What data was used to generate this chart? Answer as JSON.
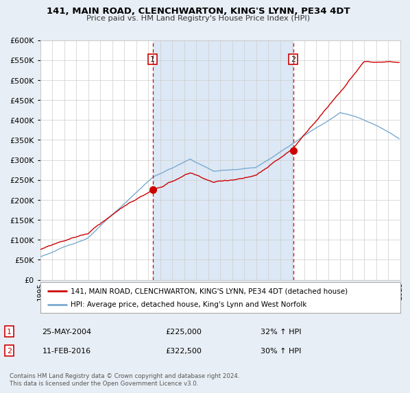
{
  "title": "141, MAIN ROAD, CLENCHWARTON, KING'S LYNN, PE34 4DT",
  "subtitle": "Price paid vs. HM Land Registry's House Price Index (HPI)",
  "red_label": "141, MAIN ROAD, CLENCHWARTON, KING'S LYNN, PE34 4DT (detached house)",
  "blue_label": "HPI: Average price, detached house, King's Lynn and West Norfolk",
  "sale1_date": "25-MAY-2004",
  "sale1_price": 225000,
  "sale1_hpi": "32% ↑ HPI",
  "sale2_date": "11-FEB-2016",
  "sale2_price": 322500,
  "sale2_hpi": "30% ↑ HPI",
  "ylim": [
    0,
    600000
  ],
  "yticks": [
    0,
    50000,
    100000,
    150000,
    200000,
    250000,
    300000,
    350000,
    400000,
    450000,
    500000,
    550000,
    600000
  ],
  "background_color": "#e8eef5",
  "plot_bg_color": "#ffffff",
  "shade_color": "#dce8f5",
  "red_color": "#cc0000",
  "blue_color": "#7aaad0",
  "vline_color": "#cc0000",
  "grid_color": "#cccccc",
  "footnote": "Contains HM Land Registry data © Crown copyright and database right 2024.\nThis data is licensed under the Open Government Licence v3.0.",
  "sale1_x": 2004.38,
  "sale2_x": 2016.09,
  "xmin": 1995,
  "xmax": 2025
}
